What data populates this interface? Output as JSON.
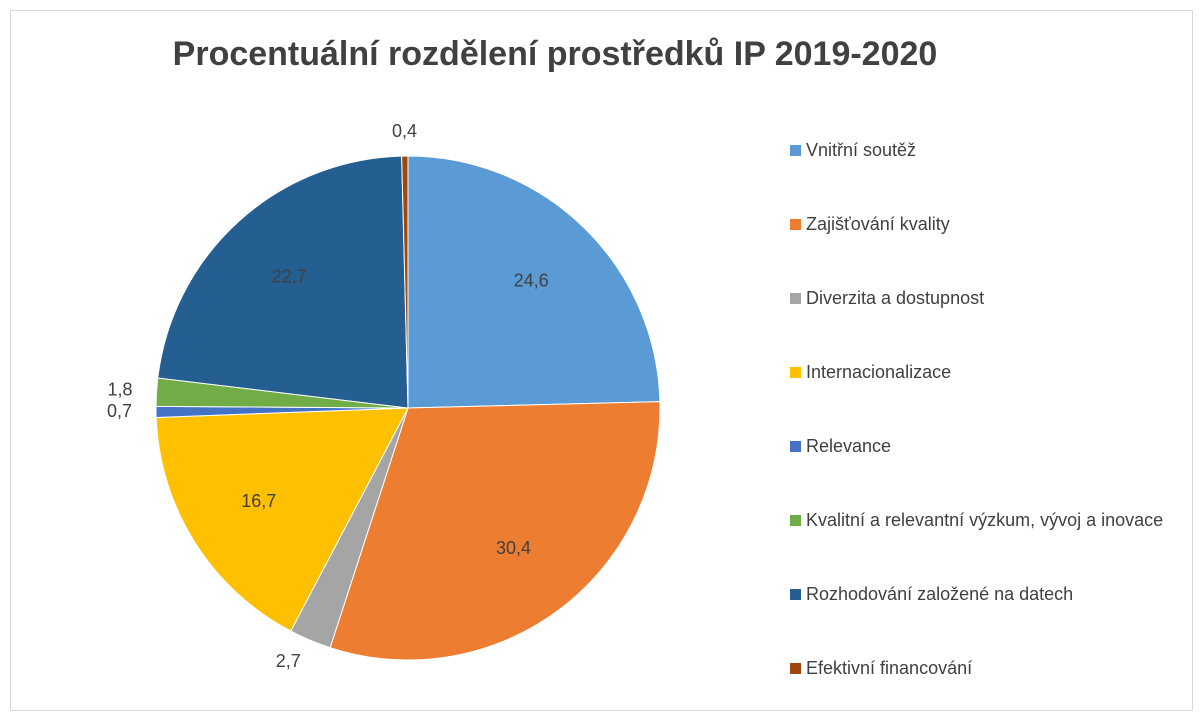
{
  "chart_data": {
    "type": "pie",
    "title": "Procentuální rozdělení prostředků IP 2019-2020",
    "categories": [
      "Vnitřní soutěž",
      "Zajišťování kvality",
      "Diverzita a dostupnost",
      "Internacionalizace",
      "Relevance",
      "Kvalitní a relevantní výzkum, vývoj a inovace",
      "Rozhodování založené na datech",
      "Efektivní financování"
    ],
    "values": [
      24.6,
      30.4,
      2.7,
      16.7,
      0.7,
      1.8,
      22.7,
      0.4
    ],
    "value_labels": [
      "24,6",
      "30,4",
      "2,7",
      "16,7",
      "0,7",
      "1,8",
      "22,7",
      "0,4"
    ],
    "colors": [
      "#5b9bd5",
      "#ed7d31",
      "#a5a5a5",
      "#ffc000",
      "#4472c4",
      "#70ad47",
      "#255e91",
      "#9e480e"
    ],
    "legend": "right"
  }
}
